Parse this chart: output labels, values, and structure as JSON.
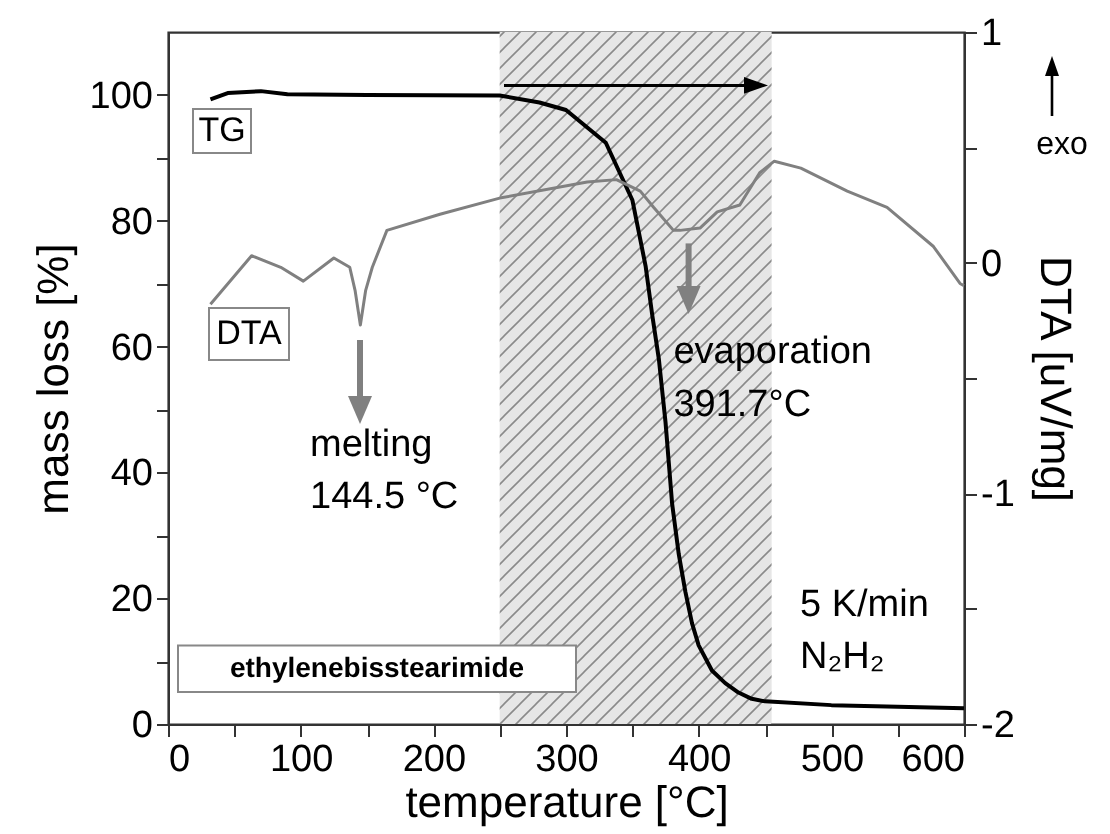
{
  "chart_data": {
    "type": "line",
    "xlabel": "temperature [°C]",
    "ylabel": "mass loss [%]",
    "y2label": "DTA [uV/mg]",
    "xlim": [
      0,
      600
    ],
    "xticks": [
      0,
      {
        "value": 50,
        "label": null
      },
      100,
      {
        "value": 150,
        "label": null
      },
      200,
      {
        "value": 250,
        "label": null
      },
      300,
      {
        "value": 350,
        "label": null
      },
      400,
      {
        "value": 450,
        "label": null
      },
      500,
      {
        "value": 550,
        "label": null
      },
      600
    ],
    "ylim": [
      0,
      110
    ],
    "yticks": [
      0,
      {
        "value": 10,
        "label": null
      },
      20,
      {
        "value": 30,
        "label": null
      },
      40,
      {
        "value": 50,
        "label": null
      },
      60,
      {
        "value": 70,
        "label": null
      },
      80,
      {
        "value": 90,
        "label": null
      },
      100
    ],
    "y2lim": [
      -2,
      1
    ],
    "y2ticks": [
      -2,
      {
        "value": -1.5,
        "label": null
      },
      -1,
      {
        "value": -0.5,
        "label": null
      },
      0,
      {
        "value": 0.5,
        "label": null
      },
      1
    ],
    "series": [
      {
        "name": "TG",
        "color": "#000000",
        "x": [
          32,
          45,
          70,
          90,
          150,
          250,
          280,
          300,
          330,
          350,
          360,
          365,
          370,
          375,
          380,
          385,
          390,
          395,
          400,
          410,
          420,
          430,
          440,
          450,
          500,
          600
        ],
        "values": [
          99.3,
          100.3,
          100.6,
          100.1,
          100,
          99.9,
          98.8,
          97.6,
          92.4,
          83.3,
          72.8,
          65,
          58,
          48,
          35,
          27,
          21,
          16,
          12.5,
          8.5,
          6.5,
          5,
          4,
          3.6,
          3,
          2.5
        ]
      },
      {
        "name": "DTA",
        "color": "#808080",
        "axis": "y2",
        "x": [
          32,
          63,
          85,
          102,
          125,
          137,
          141,
          145,
          149,
          154,
          165,
          205,
          250,
          316,
          338,
          356,
          366,
          381,
          386,
          401,
          414,
          431,
          446,
          457,
          477,
          512,
          542,
          577,
          597,
          600
        ],
        "values": [
          -0.18,
          0.03,
          -0.02,
          -0.08,
          0.02,
          -0.02,
          -0.12,
          -0.27,
          -0.12,
          -0.02,
          0.14,
          0.21,
          0.28,
          0.35,
          0.36,
          0.31,
          0.24,
          0.14,
          0.14,
          0.15,
          0.22,
          0.25,
          0.39,
          0.44,
          0.41,
          0.31,
          0.24,
          0.07,
          -0.09,
          -0.1
        ]
      }
    ],
    "bands": [
      {
        "axis": "x",
        "from": 250,
        "to": 455,
        "color": "#e6e6e6"
      }
    ],
    "annotations": [
      "melting\n144.5 °C",
      "evaporation\n391.7°C",
      "5 K/min\nN₂H₂",
      "exo",
      "ethylenebisstearimide"
    ]
  }
}
